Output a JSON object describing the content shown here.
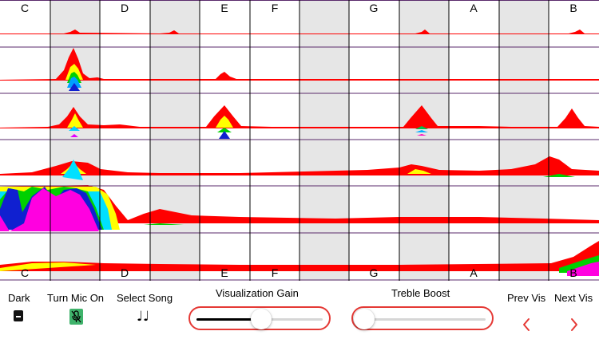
{
  "keyboard": {
    "top_note_labels": [
      "C",
      "D",
      "E",
      "F",
      "G",
      "A",
      "B"
    ],
    "bottom_note_labels": [
      "C",
      "D",
      "E",
      "F",
      "G",
      "A",
      "B"
    ]
  },
  "controls": {
    "dark_label": "Dark",
    "mic_label": "Turn Mic On",
    "song_label": "Select Song",
    "gain_label": "Visualization Gain",
    "treble_label": "Treble Boost",
    "prev_label": "Prev Vis",
    "next_label": "Next Vis"
  },
  "sliders": {
    "visualization_gain": 0.44,
    "treble_boost": 0.0
  },
  "icons": {
    "dark": "theme-toggle-icon",
    "mic": "mic-off-icon",
    "song": "music-notes-icon",
    "prev": "chevron-left-icon",
    "next": "chevron-right-icon"
  },
  "colors": {
    "accent": "#e53935",
    "grid_line": "#5a2a6b",
    "black_key_shade": "#e6e6e6",
    "mic_icon_bg": "#3fb36b"
  }
}
